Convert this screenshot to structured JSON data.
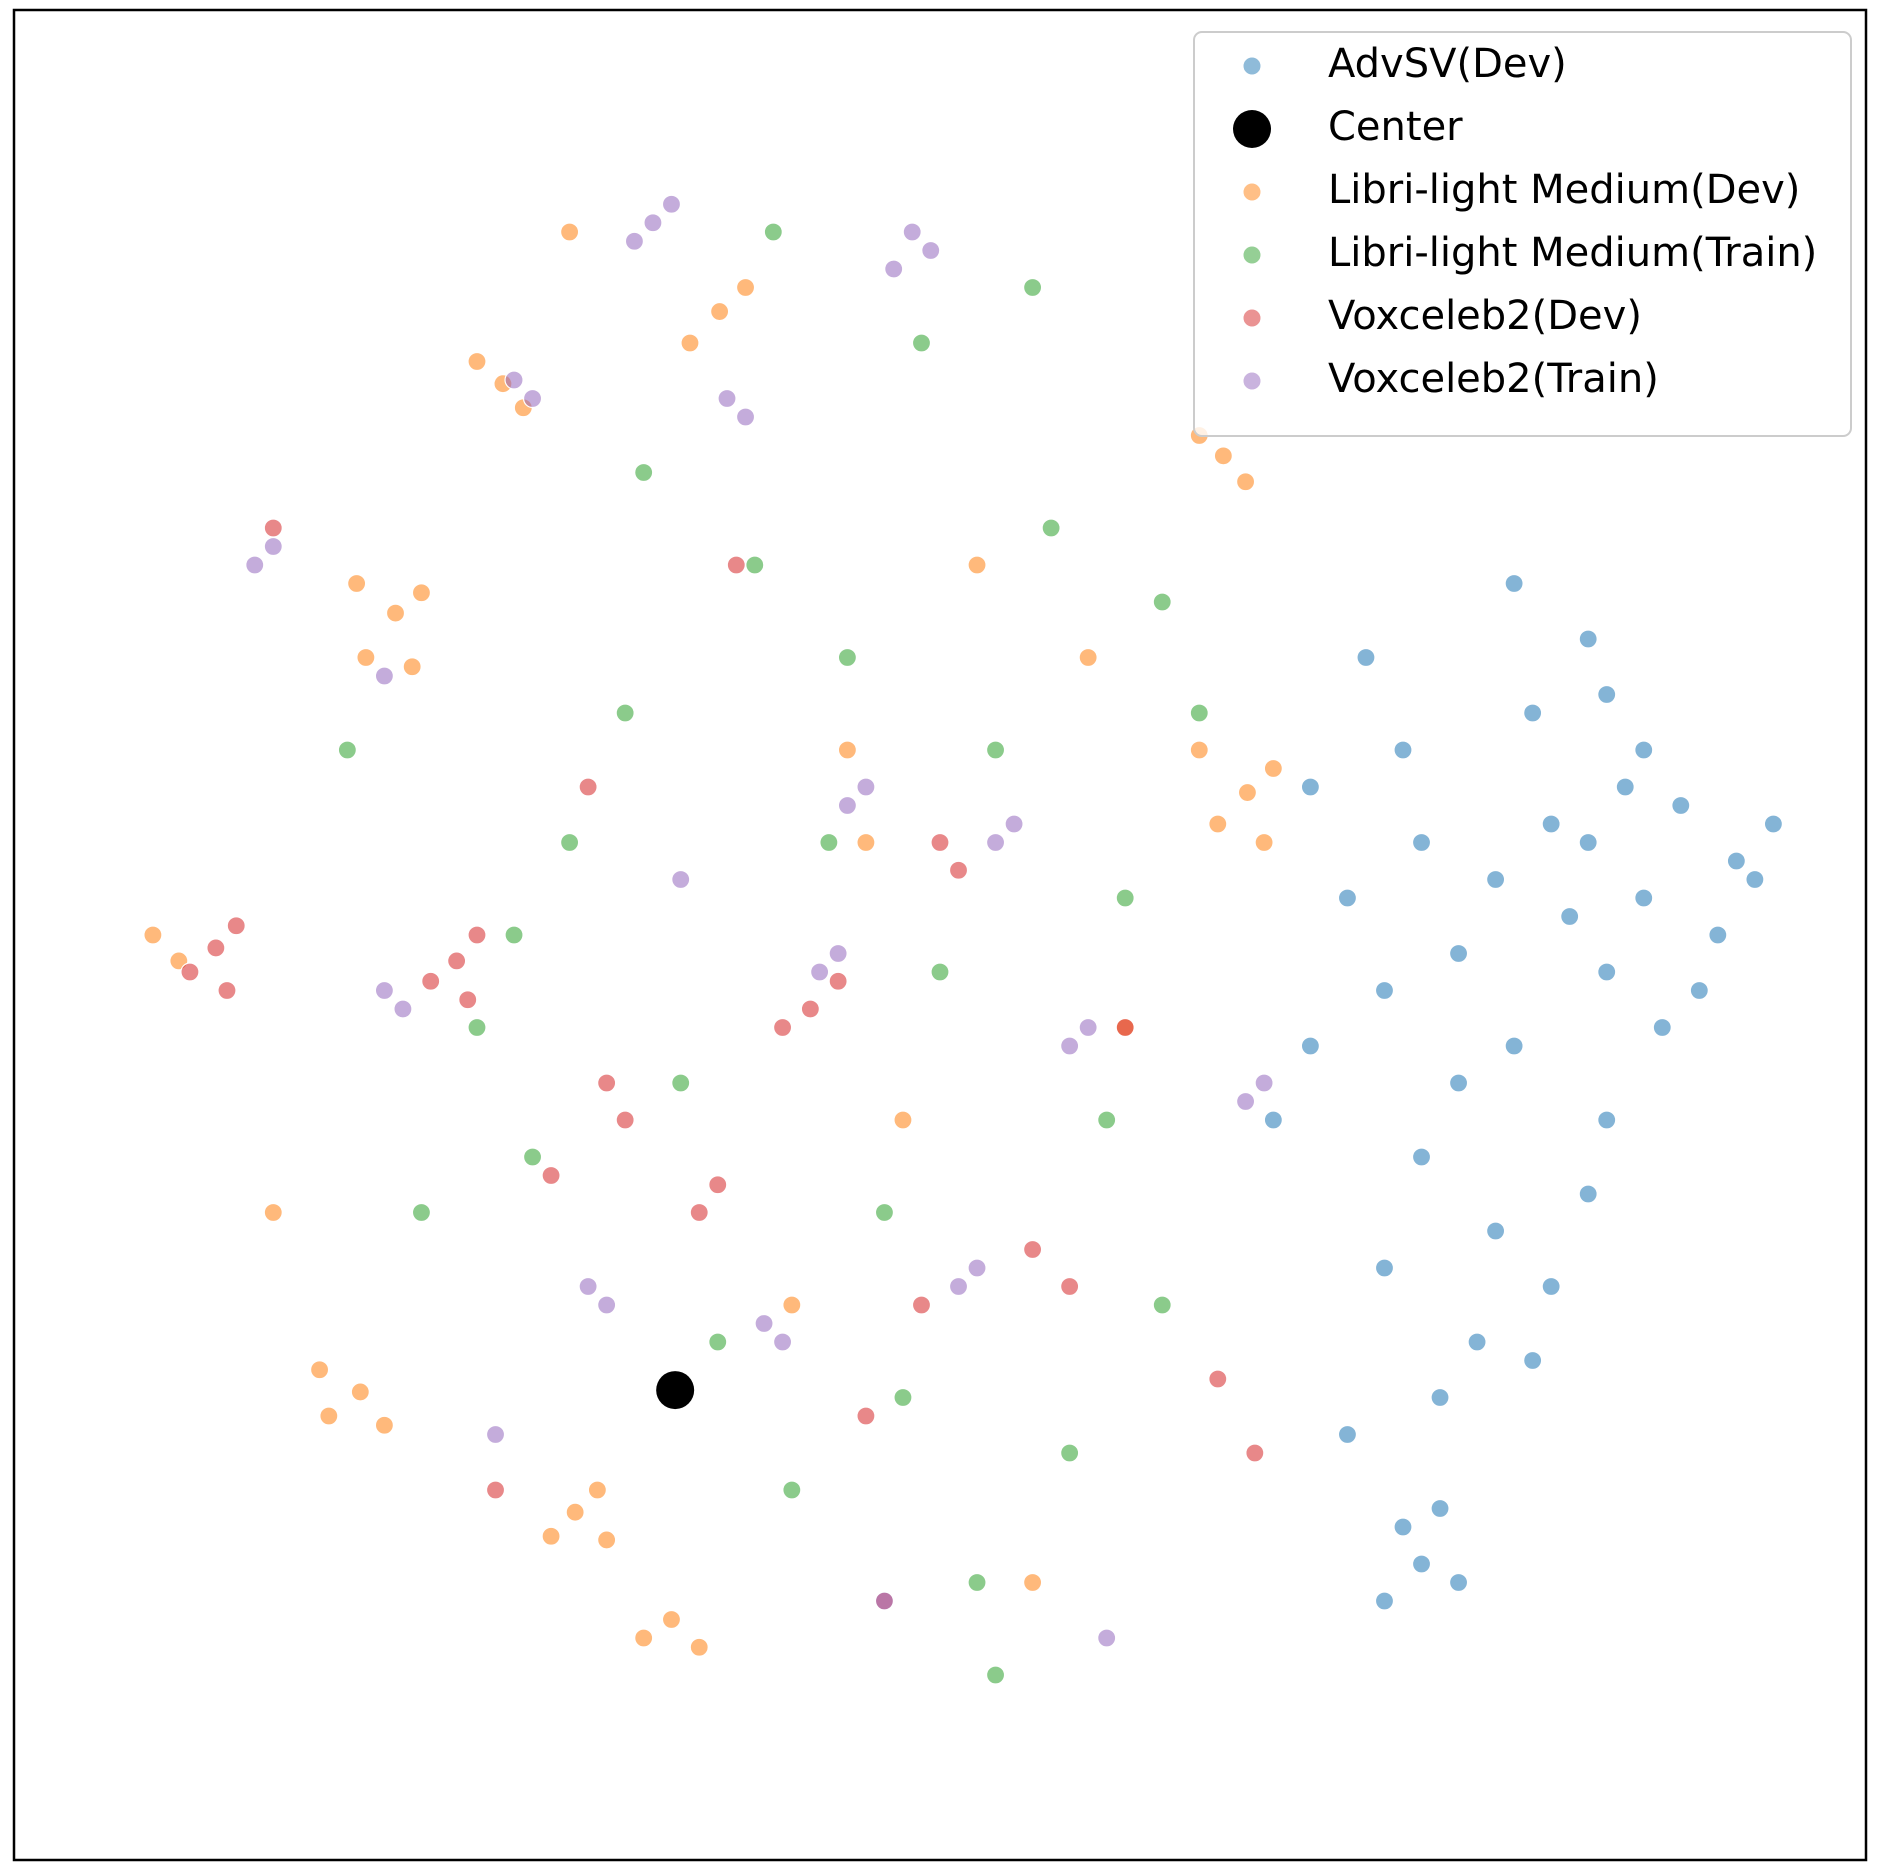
{
  "chart_data": {
    "type": "scatter",
    "xlim": [
      0,
      100
    ],
    "ylim": [
      0,
      100
    ],
    "legend": "upper right",
    "series": [
      {
        "name": "AdvSV(Dev)",
        "color": "#1f77b4",
        "x": [
          85,
          88,
          90,
          92,
          93,
          86,
          84,
          89,
          91,
          87,
          83,
          80,
          78,
          76,
          74,
          72,
          70,
          75,
          82,
          86,
          88,
          94,
          95,
          81,
          78,
          76,
          80,
          83,
          85,
          79,
          77,
          82,
          86,
          74,
          72,
          75,
          76,
          78,
          74,
          77,
          70,
          68,
          73,
          81,
          85
        ],
        "values": [
          55,
          52,
          57,
          50,
          54,
          48,
          51,
          45,
          47,
          58,
          56,
          53,
          49,
          55,
          47,
          52,
          58,
          60,
          62,
          63,
          60,
          53,
          56,
          44,
          42,
          38,
          34,
          31,
          36,
          28,
          25,
          27,
          40,
          32,
          23,
          18,
          16,
          15,
          14,
          19,
          44,
          40,
          65,
          69,
          66
        ]
      },
      {
        "name": "Center",
        "color": "#000000",
        "x": [
          35.7
        ],
        "values": [
          25.4
        ]
      },
      {
        "name": "Libri-light Medium(Dev)",
        "color": "#ff7f0e",
        "x": [
          20.6,
          22,
          19,
          21.5,
          18.5,
          66.6,
          68,
          65,
          67.5,
          64,
          65.3,
          66.5,
          64,
          18.7,
          17,
          20,
          16.5,
          30.3,
          31.5,
          29,
          32,
          38.1,
          36.5,
          39.5,
          26.4,
          25,
          27.5,
          8.9,
          7.5,
          35.5,
          34,
          37,
          45,
          52,
          58,
          60,
          42,
          48,
          55,
          14,
          30,
          46
        ],
        "values": [
          67.4,
          68.5,
          65,
          64.5,
          69,
          57.7,
          59,
          56,
          55,
          60,
          75.9,
          74.5,
          77,
          25.3,
          24,
          23.5,
          26.5,
          18.8,
          20,
          17.5,
          17.3,
          83.7,
          82,
          85,
          79.8,
          81,
          78.5,
          48.6,
          50,
          13,
          12,
          11.5,
          60,
          70,
          65,
          45,
          30,
          40,
          15,
          35,
          88,
          55
        ]
      },
      {
        "name": "Libri-light Medium(Train)",
        "color": "#2ca02c",
        "x": [
          25,
          28,
          33,
          40,
          44,
          47,
          50,
          53,
          56,
          59,
          62,
          48,
          42,
          36,
          30,
          22,
          18,
          55,
          60,
          64,
          52,
          45,
          38,
          27,
          34,
          49,
          57,
          62,
          41,
          53
        ],
        "values": [
          45,
          38,
          62,
          70,
          55,
          35,
          48,
          60,
          72,
          40,
          30,
          25,
          20,
          42,
          55,
          35,
          60,
          85,
          52,
          62,
          15,
          65,
          28,
          50,
          75,
          82,
          22,
          68,
          88,
          10
        ]
      },
      {
        "name": "Voxceleb2(Dev)",
        "color": "#d62728",
        "x": [
          10.9,
          12,
          9.5,
          11.5,
          23.9,
          25,
          22.5,
          24.5,
          43,
          44.5,
          41.5,
          32,
          33,
          37,
          38,
          50,
          51,
          49,
          55,
          57,
          46,
          29,
          31,
          39,
          60,
          65,
          67,
          14,
          26,
          47
        ],
        "values": [
          49.3,
          50.5,
          48,
          47,
          48.6,
          50,
          47.5,
          46.5,
          46,
          47.5,
          45,
          42,
          40,
          35,
          36.5,
          55,
          53.5,
          30,
          33,
          31,
          24,
          37,
          58,
          70,
          45,
          26,
          22,
          72,
          20,
          14
        ]
      },
      {
        "name": "Voxceleb2(Train)",
        "color": "#9467bd",
        "x": [
          34.5,
          35.5,
          33.5,
          48.5,
          49.5,
          47.5,
          38.5,
          39.5,
          27,
          28,
          20,
          21,
          13,
          14,
          45,
          46,
          53,
          54,
          66.5,
          67.5,
          31,
          32,
          40.5,
          41.5,
          51,
          52,
          57,
          58,
          43.5,
          44.5,
          59,
          20,
          26,
          47,
          36
        ],
        "values": [
          88.5,
          89.5,
          87.5,
          88,
          87,
          86,
          79,
          78,
          80,
          79,
          47,
          46,
          70,
          71,
          57,
          58,
          55,
          56,
          41,
          42,
          31,
          30,
          29,
          28,
          31,
          32,
          44,
          45,
          48,
          49,
          12,
          64,
          23,
          14,
          53
        ]
      }
    ]
  }
}
